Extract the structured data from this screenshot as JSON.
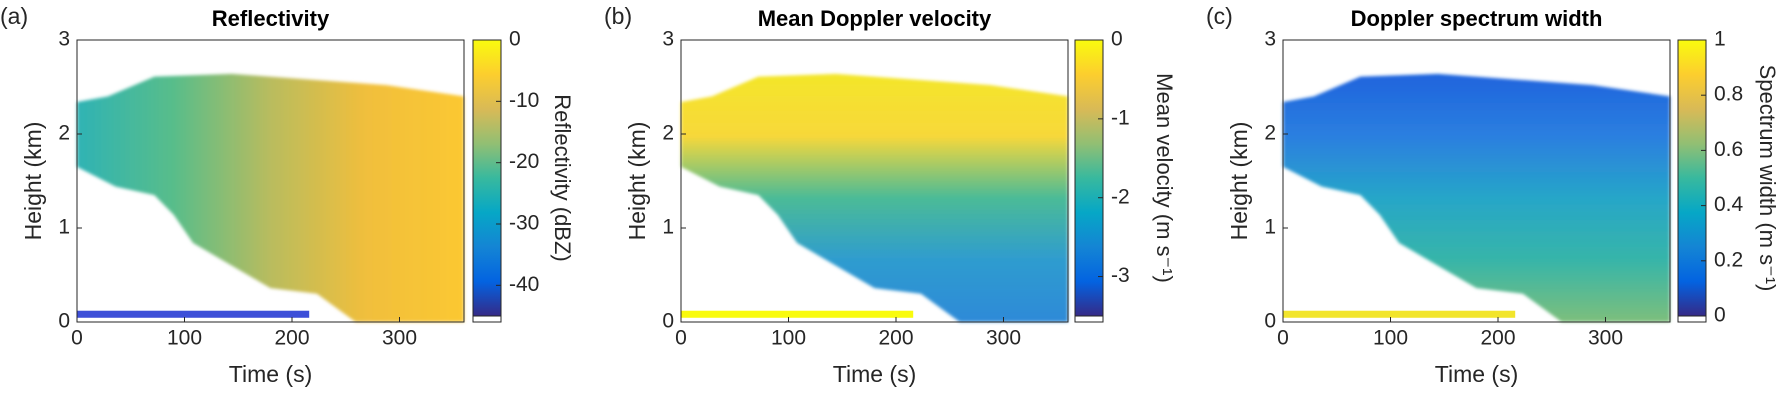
{
  "chart_data": [
    {
      "type": "heatmap",
      "label": "(a)",
      "title": "Reflectivity",
      "x_label": "Time (s)",
      "y_label": "Height (km)",
      "xlim": [
        0,
        360
      ],
      "xticks": [
        0,
        100,
        200,
        300
      ],
      "ylim": [
        0,
        3
      ],
      "yticks": [
        0,
        1,
        2,
        3
      ],
      "colormap": "parula",
      "colorbar_label": "Reflectivity (dBZ)",
      "clim": [
        -45,
        0
      ],
      "cticks": [
        0,
        -10,
        -20,
        -30,
        -40
      ]
    },
    {
      "type": "heatmap",
      "label": "(b)",
      "title": "Mean Doppler velocity",
      "x_label": "Time (s)",
      "y_label": "Height (km)",
      "xlim": [
        0,
        360
      ],
      "xticks": [
        0,
        100,
        200,
        300
      ],
      "ylim": [
        0,
        3
      ],
      "yticks": [
        0,
        1,
        2,
        3
      ],
      "colormap": "parula",
      "colorbar_label": "Mean velocity (m s⁻¹)",
      "clim": [
        -3.5,
        0
      ],
      "cticks": [
        0,
        -1,
        -2,
        -3
      ]
    },
    {
      "type": "heatmap",
      "label": "(c)",
      "title": "Doppler spectrum width",
      "x_label": "Time (s)",
      "y_label": "Height (km)",
      "xlim": [
        0,
        360
      ],
      "xticks": [
        0,
        100,
        200,
        300
      ],
      "ylim": [
        0,
        3
      ],
      "yticks": [
        0,
        1,
        2,
        3
      ],
      "colormap": "parula",
      "colorbar_label": "Spectrum width (m s⁻¹)",
      "clim": [
        0,
        1
      ],
      "cticks": [
        0,
        0.2,
        0.4,
        0.6,
        0.8,
        1
      ]
    }
  ]
}
